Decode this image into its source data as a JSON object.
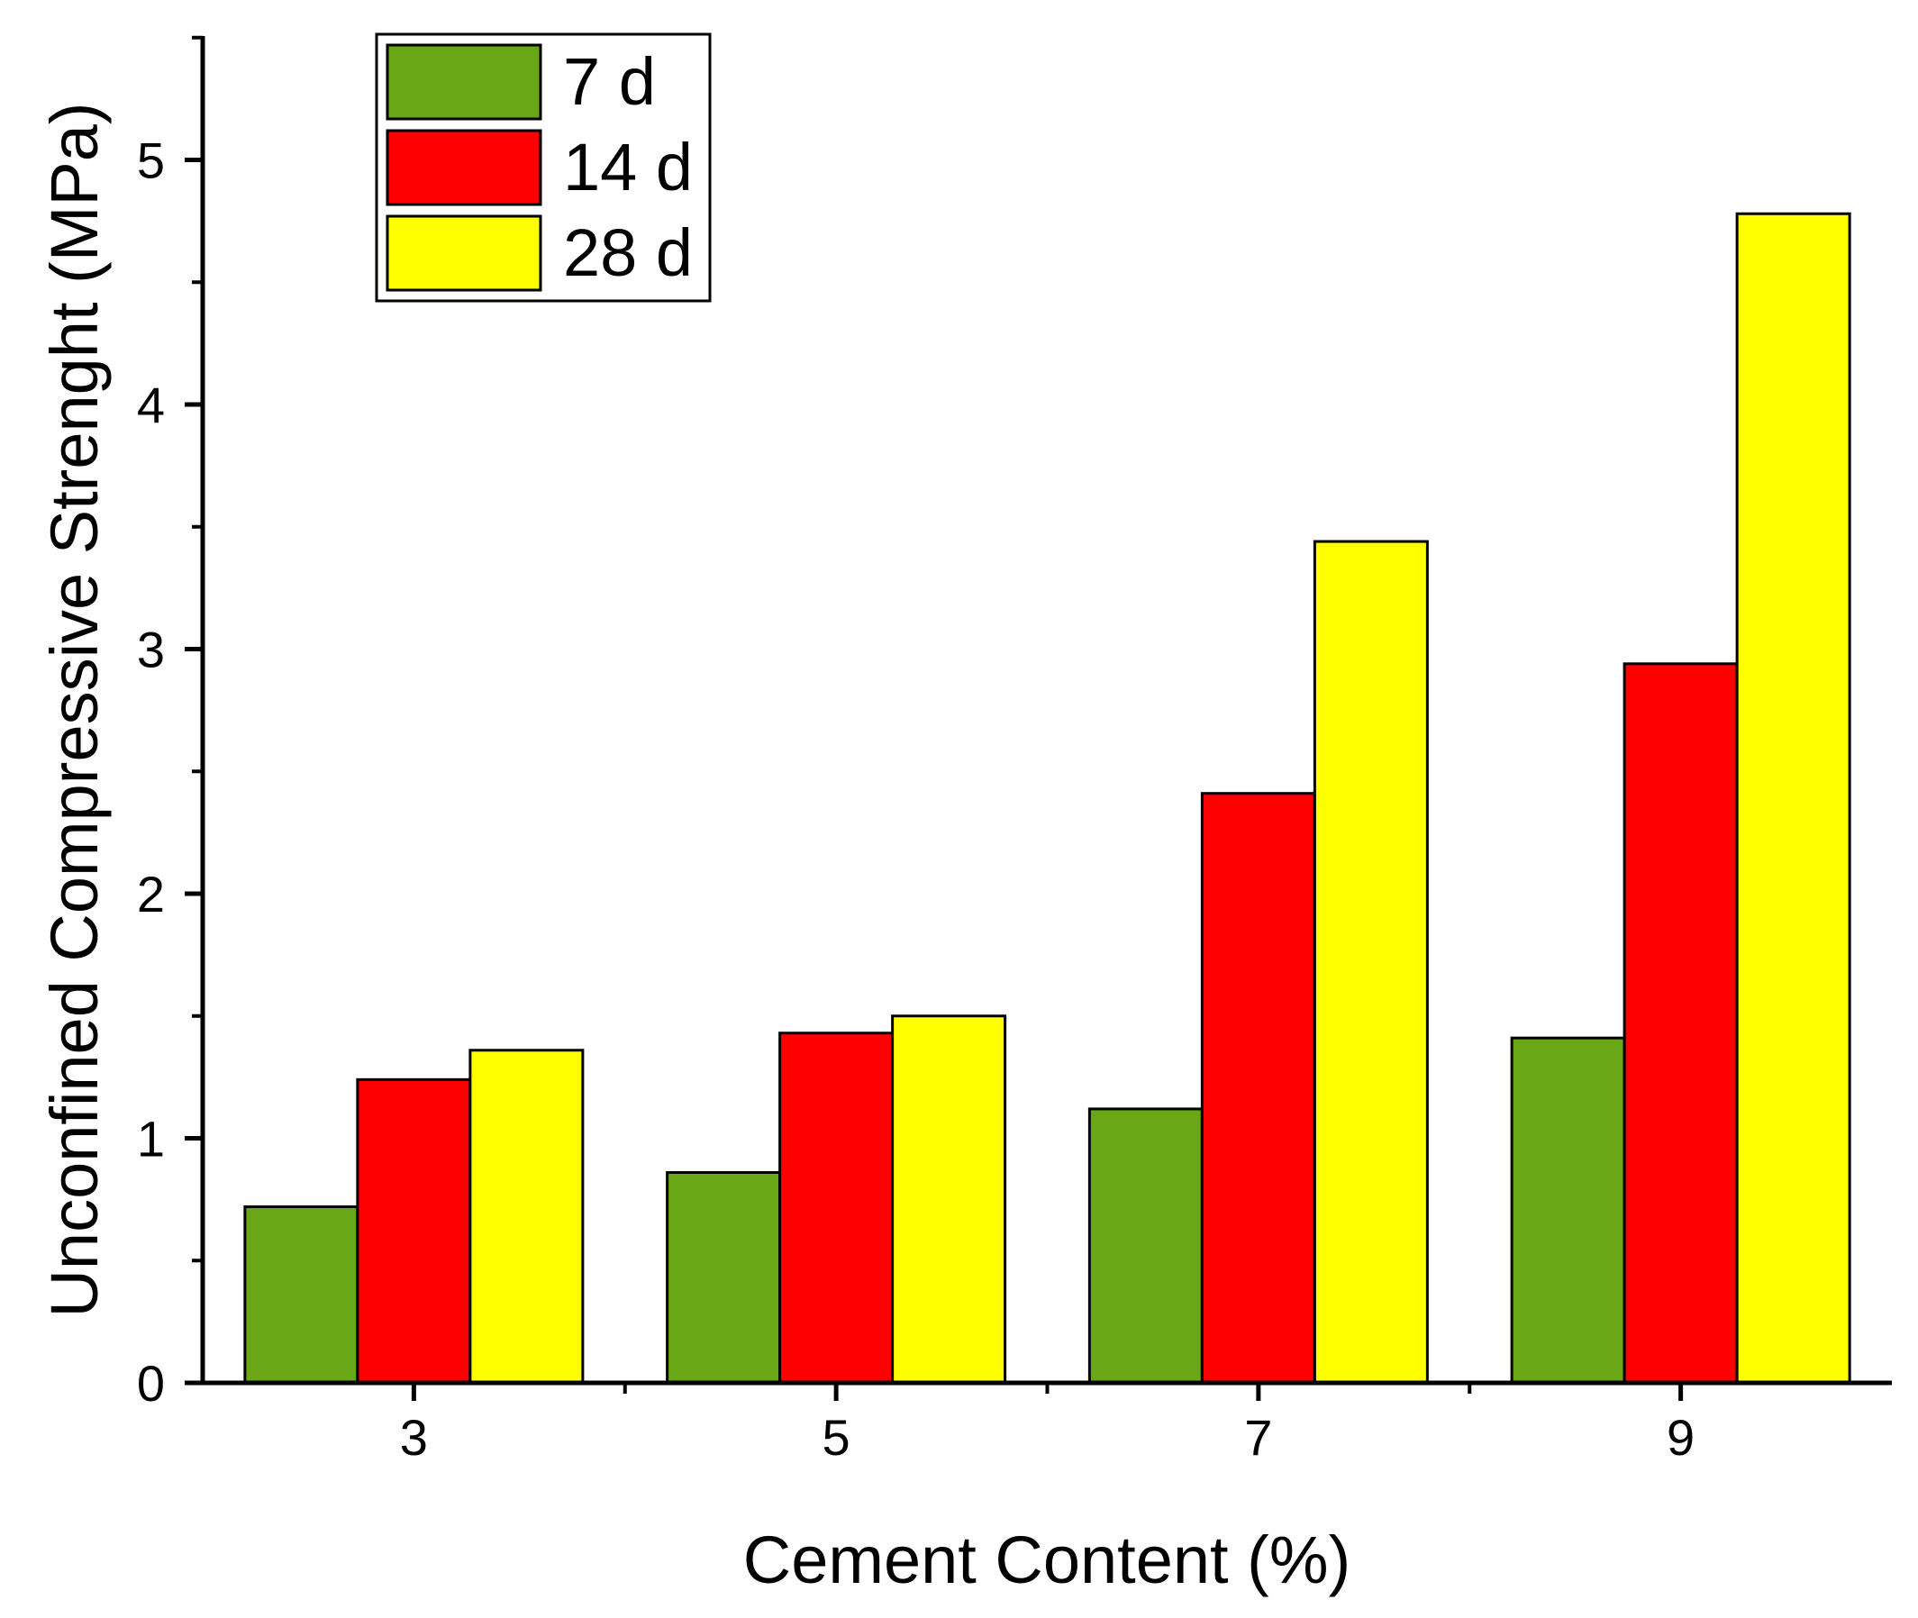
{
  "chart_data": {
    "type": "bar",
    "title": "",
    "xlabel": "Cement Content (%)",
    "ylabel": "Unconfined Compressive Strenght (MPa)",
    "categories": [
      "3",
      "5",
      "7",
      "9"
    ],
    "series": [
      {
        "name": "7 d",
        "color": "#6aa716",
        "values": [
          0.72,
          0.86,
          1.12,
          1.41
        ]
      },
      {
        "name": "14 d",
        "color": "#ff0000",
        "values": [
          1.24,
          1.43,
          2.41,
          2.94
        ]
      },
      {
        "name": "28 d",
        "color": "#ffff00",
        "values": [
          1.36,
          1.5,
          3.44,
          4.78
        ]
      }
    ],
    "ylim": [
      0,
      5.5
    ],
    "yticks": [
      "0",
      "1",
      "2",
      "3",
      "4",
      "5"
    ],
    "grid": false,
    "legend_position": "top-left"
  }
}
